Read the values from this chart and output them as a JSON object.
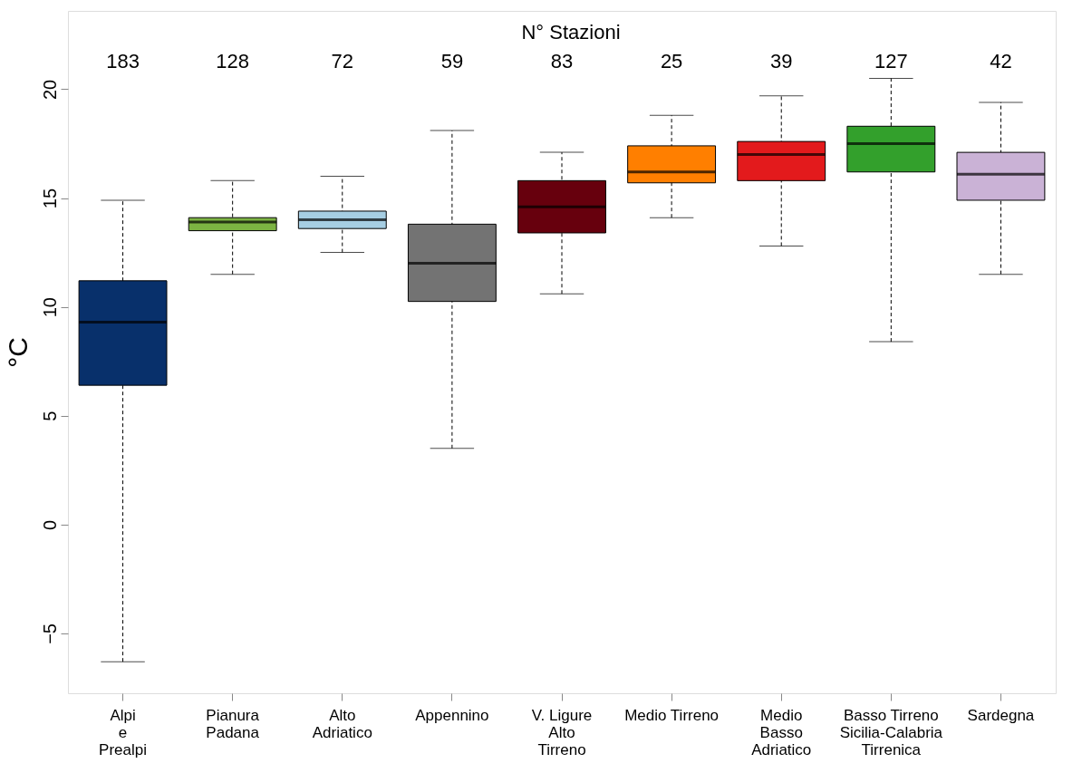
{
  "chart_data": {
    "type": "box",
    "ylabel": "°C",
    "categories": [
      "Alpi\ne\nPrealpi",
      "Pianura\nPadana",
      "Alto\nAdriatico",
      "Appennino",
      "V. Ligure\nAlto\nTirreno",
      "Medio Tirreno",
      "Medio\nBasso\nAdriatico",
      "Basso Tirreno\nSicilia-Calabria\nTirrenica",
      "Sardegna"
    ],
    "colors": [
      "#08306b",
      "#7cb342",
      "#a6cee3",
      "#737373",
      "#67000d",
      "#ff7f00",
      "#e31a1c",
      "#33a02c",
      "#cab2d6"
    ],
    "boxes": [
      {
        "low": -6.3,
        "q1": 6.4,
        "median": 9.3,
        "q3": 11.2,
        "high": 14.9
      },
      {
        "low": 11.5,
        "q1": 13.5,
        "median": 13.9,
        "q3": 14.1,
        "high": 15.8
      },
      {
        "low": 12.5,
        "q1": 13.6,
        "median": 14.0,
        "q3": 14.4,
        "high": 16.0
      },
      {
        "low": 3.5,
        "q1": 10.25,
        "median": 12.0,
        "q3": 13.8,
        "high": 18.1
      },
      {
        "low": 10.6,
        "q1": 13.4,
        "median": 14.6,
        "q3": 15.8,
        "high": 17.1
      },
      {
        "low": 14.1,
        "q1": 15.7,
        "median": 16.2,
        "q3": 17.4,
        "high": 18.8
      },
      {
        "low": 12.8,
        "q1": 15.8,
        "median": 17.0,
        "q3": 17.6,
        "high": 19.7
      },
      {
        "low": 8.4,
        "q1": 16.2,
        "median": 17.5,
        "q3": 18.3,
        "high": 20.5
      },
      {
        "low": 11.5,
        "q1": 14.9,
        "median": 16.1,
        "q3": 17.1,
        "high": 19.4
      }
    ],
    "ylim": [
      -7.75,
      23.6
    ],
    "yticks": [
      -5,
      0,
      5,
      10,
      15,
      20
    ],
    "grid": false,
    "annotations": [
      "N° Stazioni",
      "183",
      "128",
      "72",
      "59",
      "83",
      "25",
      "39",
      "127",
      "42"
    ]
  }
}
